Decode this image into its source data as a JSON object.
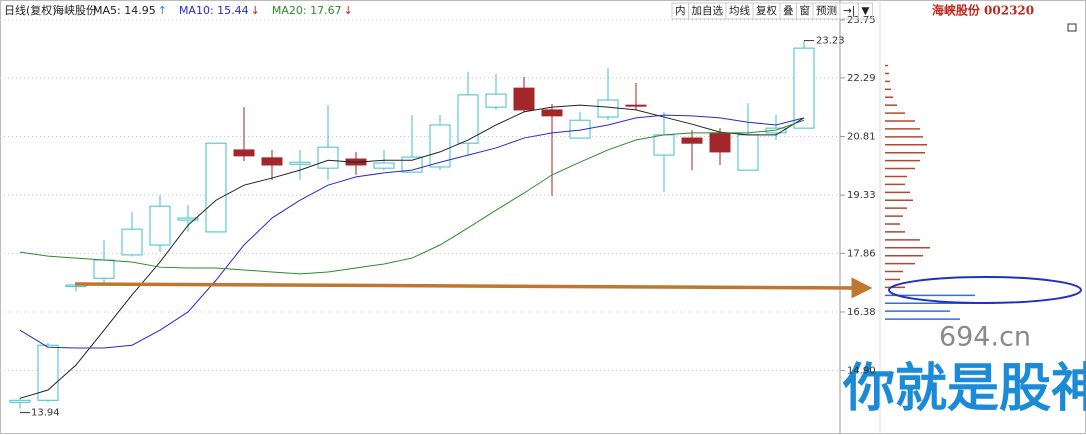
{
  "chart_data": {
    "type": "candlestick",
    "period": "日线(复权)",
    "name": "海峡股份",
    "title": "海峡股份 002320",
    "toolbar": [
      "内",
      "加自选",
      "均线",
      "复权",
      "叠",
      "窗",
      "预测",
      "→|",
      "▼"
    ],
    "ylim": [
      13.4,
      23.75
    ],
    "yticks": [
      23.75,
      22.29,
      20.81,
      19.33,
      17.86,
      16.38,
      {
        "value": 14.9,
        "label": "14.90"
      }
    ],
    "grid": true,
    "up_color": "#3fbfd0",
    "down_color": "#a3262a",
    "candles": [
      [
        14.1,
        14.2,
        13.94,
        14.15
      ],
      [
        14.15,
        15.6,
        14.1,
        15.54
      ],
      [
        17.02,
        17.1,
        16.9,
        17.06
      ],
      [
        17.23,
        18.19,
        17.1,
        17.69
      ],
      [
        17.82,
        18.9,
        17.78,
        18.47
      ],
      [
        18.07,
        19.33,
        17.9,
        19.05
      ],
      [
        18.7,
        19.08,
        18.4,
        18.75
      ],
      [
        18.4,
        20.64,
        18.4,
        20.64
      ],
      [
        20.47,
        21.55,
        20.19,
        20.32
      ],
      [
        20.27,
        20.47,
        19.71,
        20.09
      ],
      [
        20.11,
        20.47,
        19.71,
        20.16
      ],
      [
        20.01,
        21.6,
        19.71,
        20.54
      ],
      [
        20.24,
        20.42,
        19.84,
        20.09
      ],
      [
        20.01,
        20.47,
        19.96,
        20.14
      ],
      [
        19.91,
        21.35,
        19.91,
        20.29
      ],
      [
        20.04,
        21.35,
        19.96,
        21.1
      ],
      [
        20.64,
        22.44,
        20.34,
        21.86
      ],
      [
        21.55,
        22.39,
        21.48,
        21.88
      ],
      [
        22.03,
        22.31,
        21.43,
        21.48
      ],
      [
        21.48,
        21.63,
        19.31,
        21.33
      ],
      [
        20.77,
        21.43,
        20.77,
        21.22
      ],
      [
        21.3,
        22.54,
        21.22,
        21.73
      ],
      [
        21.6,
        22.16,
        21.48,
        21.58
      ],
      [
        20.34,
        21.43,
        19.41,
        20.85
      ],
      [
        20.77,
        20.97,
        19.96,
        20.64
      ],
      [
        20.9,
        21.02,
        20.09,
        20.42
      ],
      [
        19.96,
        21.65,
        19.96,
        20.85
      ],
      [
        20.9,
        21.35,
        20.72,
        21.02
      ],
      [
        21.02,
        23.23,
        21.02,
        23.04
      ]
    ],
    "series": [
      {
        "name": "MA5: 14.95",
        "arrow": "↑",
        "color": "#222222",
        "values": [
          14.2,
          14.41,
          15.04,
          15.92,
          16.81,
          17.64,
          18.57,
          19.2,
          19.58,
          19.76,
          19.96,
          20.21,
          20.16,
          20.21,
          20.21,
          20.42,
          20.72,
          21.1,
          21.43,
          21.55,
          21.6,
          21.55,
          21.48,
          21.3,
          21.12,
          20.92,
          20.85,
          20.85,
          21.28
        ]
      },
      {
        "name": "MA10: 15.44",
        "arrow": "↓",
        "color": "#2a2ad0",
        "values": [
          15.92,
          15.49,
          15.47,
          15.47,
          15.54,
          15.92,
          16.38,
          17.18,
          18.07,
          18.75,
          19.2,
          19.58,
          19.79,
          19.89,
          19.96,
          20.16,
          20.34,
          20.52,
          20.77,
          20.9,
          20.97,
          21.1,
          21.28,
          21.35,
          21.33,
          21.28,
          21.17,
          21.1,
          21.28
        ]
      },
      {
        "name": "MA20: 17.67",
        "arrow": "↓",
        "color": "#2e8a2e",
        "values": [
          17.89,
          17.79,
          17.74,
          17.69,
          17.64,
          17.51,
          17.49,
          17.49,
          17.44,
          17.39,
          17.34,
          17.39,
          17.49,
          17.59,
          17.74,
          18.07,
          18.5,
          18.95,
          19.38,
          19.84,
          20.16,
          20.47,
          20.72,
          20.85,
          20.9,
          20.9,
          20.9,
          20.97,
          21.22
        ]
      }
    ],
    "max_candle": 28,
    "min_candle": 0,
    "profile": {
      "prices": [
        16.2,
        16.4,
        16.6,
        16.8,
        17.0,
        17.2,
        17.4,
        17.6,
        17.8,
        18.0,
        18.2,
        18.4,
        18.6,
        18.8,
        19.0,
        19.2,
        19.4,
        19.6,
        19.8,
        20.0,
        20.2,
        20.4,
        20.6,
        20.8,
        21.0,
        21.2,
        21.4,
        21.6,
        21.8,
        22.0,
        22.2,
        22.4,
        22.6
      ],
      "volumes": [
        75,
        65,
        110,
        90,
        20,
        15,
        18,
        30,
        38,
        45,
        35,
        20,
        15,
        18,
        22,
        28,
        25,
        20,
        22,
        30,
        35,
        40,
        42,
        38,
        35,
        30,
        20,
        12,
        8,
        6,
        5,
        4,
        3
      ],
      "split_price": 17.0,
      "low_color": "#2f6fd6",
      "high_color": "#b0492f"
    },
    "watermark": {
      "site": "694.cn",
      "slogan": "你就是股神"
    }
  }
}
